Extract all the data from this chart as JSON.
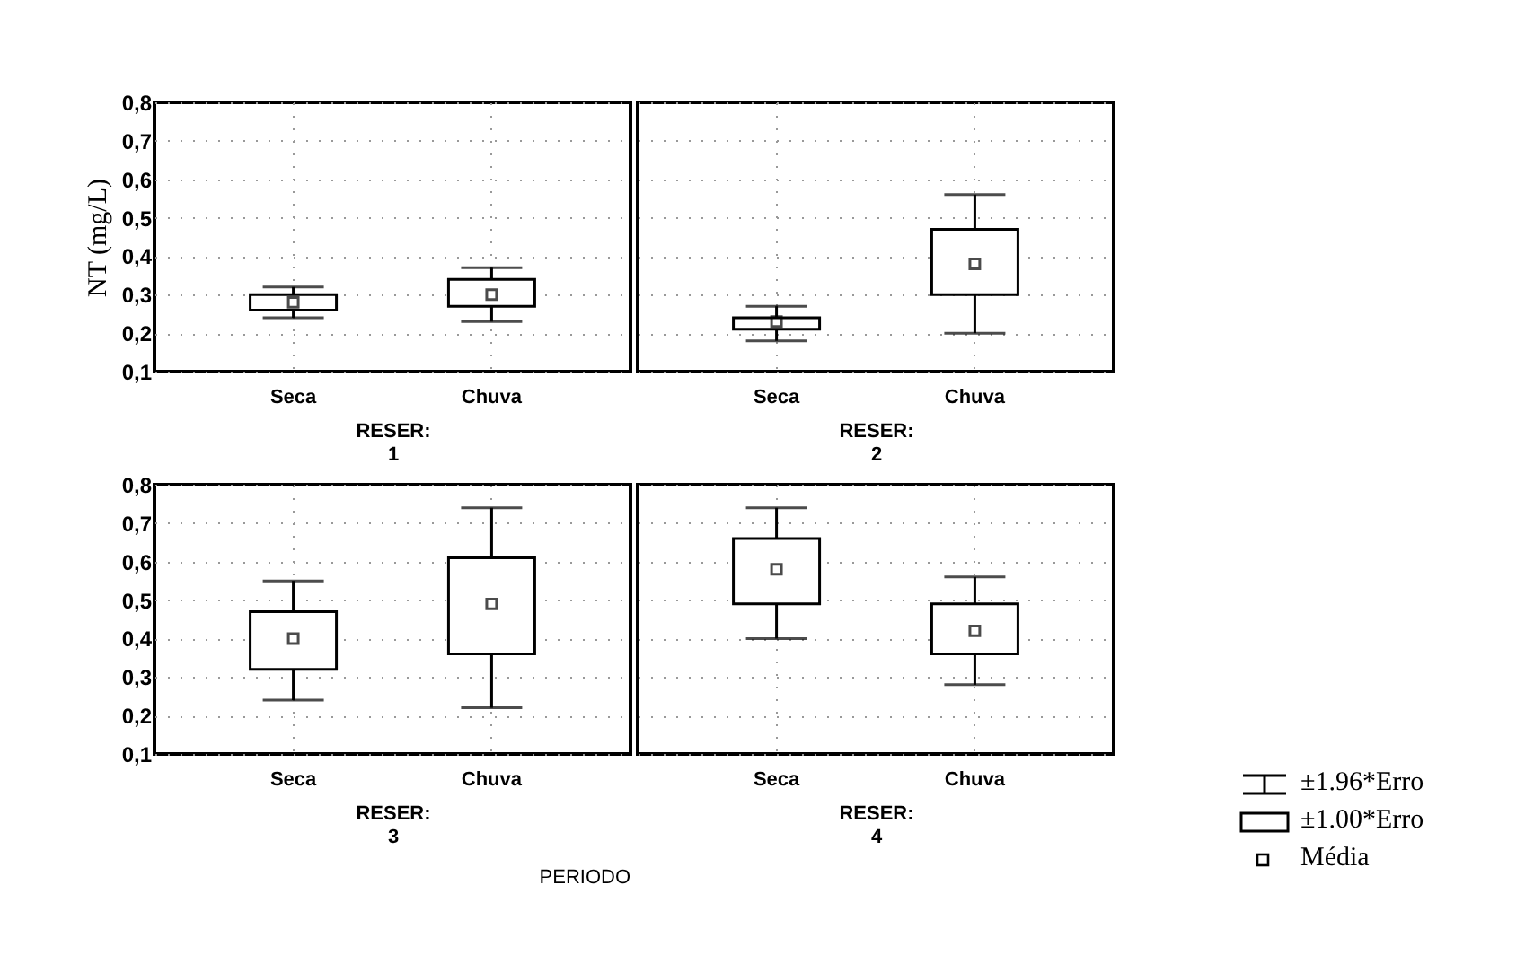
{
  "chart_data": [
    {
      "type": "box",
      "ylabel": "NT (mg/L)",
      "xlabel": "RESER:\n1",
      "categories": [
        "Seca",
        "Chuva"
      ],
      "ylim": [
        0.1,
        0.8
      ],
      "yticks": [
        {
          "value": 0.1,
          "label": "0,1"
        },
        {
          "value": 0.2,
          "label": "0,2"
        },
        {
          "value": 0.3,
          "label": "0,3"
        },
        {
          "value": 0.4,
          "label": "0,4"
        },
        {
          "value": 0.5,
          "label": "0,5"
        },
        {
          "value": 0.6,
          "label": "0,6"
        },
        {
          "value": 0.7,
          "label": "0,7"
        },
        {
          "value": 0.8,
          "label": "0,8"
        }
      ],
      "grid": true,
      "boxes": [
        {
          "low": 0.24,
          "q1": 0.26,
          "q3": 0.3,
          "high": 0.32,
          "mean": 0.28
        },
        {
          "low": 0.23,
          "q1": 0.27,
          "q3": 0.34,
          "high": 0.37,
          "mean": 0.3
        }
      ]
    },
    {
      "type": "box",
      "xlabel": "RESER:\n2",
      "categories": [
        "Seca",
        "Chuva"
      ],
      "ylim": [
        0.1,
        0.8
      ],
      "yticks": [
        0.1,
        0.2,
        0.3,
        0.4,
        0.5,
        0.6,
        0.7,
        0.8
      ],
      "grid": true,
      "tick_labels": "x",
      "boxes": [
        {
          "low": 0.18,
          "q1": 0.21,
          "q3": 0.24,
          "high": 0.27,
          "mean": 0.23
        },
        {
          "low": 0.2,
          "q1": 0.3,
          "q3": 0.47,
          "high": 0.56,
          "mean": 0.38
        }
      ]
    },
    {
      "type": "box",
      "xlabel": "RESER:\n3",
      "categories": [
        "Seca",
        "Chuva"
      ],
      "ylim": [
        0.1,
        0.8
      ],
      "yticks": [
        {
          "value": 0.1,
          "label": "0,1"
        },
        {
          "value": 0.2,
          "label": "0,2"
        },
        {
          "value": 0.3,
          "label": "0,3"
        },
        {
          "value": 0.4,
          "label": "0,4"
        },
        {
          "value": 0.5,
          "label": "0,5"
        },
        {
          "value": 0.6,
          "label": "0,6"
        },
        {
          "value": 0.7,
          "label": "0,7"
        },
        {
          "value": 0.8,
          "label": "0,8"
        }
      ],
      "grid": true,
      "annotations": [
        "PERIODO"
      ],
      "boxes": [
        {
          "low": 0.24,
          "q1": 0.32,
          "q3": 0.47,
          "high": 0.55,
          "mean": 0.4
        },
        {
          "low": 0.22,
          "q1": 0.36,
          "q3": 0.61,
          "high": 0.74,
          "mean": 0.49
        }
      ]
    },
    {
      "type": "box",
      "xlabel": "RESER:\n4",
      "categories": [
        "Seca",
        "Chuva"
      ],
      "ylim": [
        0.1,
        0.8
      ],
      "yticks": [
        0.1,
        0.2,
        0.3,
        0.4,
        0.5,
        0.6,
        0.7,
        0.8
      ],
      "grid": true,
      "tick_labels": "x",
      "annotations": [
        "±1.96*Erro",
        "±1.00*Erro",
        "Média"
      ],
      "boxes": [
        {
          "low": 0.4,
          "q1": 0.49,
          "q3": 0.66,
          "high": 0.74,
          "mean": 0.58
        },
        {
          "low": 0.28,
          "q1": 0.36,
          "q3": 0.49,
          "high": 0.56,
          "mean": 0.42
        }
      ]
    }
  ]
}
